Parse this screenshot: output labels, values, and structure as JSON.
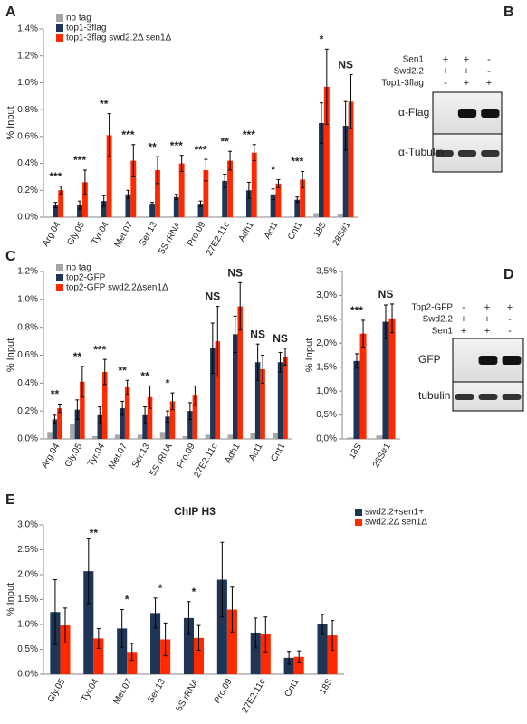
{
  "chart_data": [
    {
      "type": "bar",
      "panel": "A",
      "y_label": "% Input",
      "categories": [
        "Arg.04",
        "Gly.05",
        "Tyr.04",
        "Met.07",
        "Ser.13",
        "5S rRNA",
        "Pro.09",
        "27E2.11c",
        "Adh1",
        "Act1",
        "Cnt1",
        "18S",
        "28S#1"
      ],
      "ylim": [
        0,
        1.4
      ],
      "yticks": [
        {
          "value": 0,
          "label": "0,0%"
        },
        {
          "value": 0.2,
          "label": "0,2%"
        },
        {
          "value": 0.4,
          "label": "0,4%"
        },
        {
          "value": 0.6,
          "label": "0,6%"
        },
        {
          "value": 0.8,
          "label": "0,8%"
        },
        {
          "value": 1.0,
          "label": "1,0%"
        },
        {
          "value": 1.2,
          "label": "1,2%"
        },
        {
          "value": 1.4,
          "label": "1,4%"
        }
      ],
      "series": [
        {
          "name": "no tag",
          "color": "#a6a6a6",
          "values": [
            0.005,
            0.005,
            0.005,
            0.005,
            0.005,
            0.005,
            0.005,
            0.005,
            0.005,
            0.005,
            0.005,
            0.03,
            0.02
          ]
        },
        {
          "name": "top1-3flag",
          "color": "#1f3556",
          "values": [
            0.09,
            0.09,
            0.12,
            0.17,
            0.1,
            0.15,
            0.1,
            0.27,
            0.2,
            0.17,
            0.13,
            0.7,
            0.68
          ],
          "errors": [
            0.02,
            0.03,
            0.04,
            0.03,
            0.01,
            0.02,
            0.02,
            0.05,
            0.06,
            0.04,
            0.02,
            0.15,
            0.18
          ]
        },
        {
          "name": "top1-3flag swd2.2Δ sen1Δ",
          "color": "#ff2a00",
          "values": [
            0.2,
            0.26,
            0.61,
            0.42,
            0.35,
            0.4,
            0.35,
            0.42,
            0.48,
            0.25,
            0.28,
            0.97,
            0.86
          ],
          "errors": [
            0.03,
            0.09,
            0.16,
            0.12,
            0.1,
            0.06,
            0.08,
            0.07,
            0.06,
            0.03,
            0.06,
            0.28,
            0.2
          ]
        }
      ],
      "annotations": [
        "***",
        "***",
        "**",
        "***",
        "**",
        "***",
        "***",
        "**",
        "***",
        "*",
        "***",
        "*",
        "NS"
      ]
    },
    {
      "type": "bar",
      "panel": "C",
      "y_label": "% Input",
      "categories": [
        "Arg.04",
        "Gly.05",
        "Tyr.04",
        "Met.07",
        "Ser.13",
        "5S rRNA",
        "Pro.09",
        "27E2.11c",
        "Adh1",
        "Act1",
        "Cnt1"
      ],
      "ylim": [
        0,
        1.2
      ],
      "yticks": [
        {
          "value": 0,
          "label": "0,0%"
        },
        {
          "value": 0.2,
          "label": "0,2%"
        },
        {
          "value": 0.4,
          "label": "0,4%"
        },
        {
          "value": 0.6,
          "label": "0,6%"
        },
        {
          "value": 0.8,
          "label": "0,8%"
        },
        {
          "value": 1.0,
          "label": "1,0%"
        },
        {
          "value": 1.2,
          "label": "1,2%"
        }
      ],
      "series": [
        {
          "name": "no tag",
          "color": "#a6a6a6",
          "values": [
            0.05,
            0.11,
            0.02,
            0.03,
            0.03,
            0.05,
            0.02,
            0.03,
            0.03,
            0.04,
            0.04
          ]
        },
        {
          "name": "top2-GFP",
          "color": "#1f3556",
          "values": [
            0.14,
            0.21,
            0.17,
            0.22,
            0.17,
            0.16,
            0.2,
            0.65,
            0.75,
            0.55,
            0.55
          ],
          "errors": [
            0.03,
            0.07,
            0.06,
            0.05,
            0.06,
            0.04,
            0.06,
            0.18,
            0.13,
            0.13,
            0.07
          ]
        },
        {
          "name": "top2-GFP swd2.2Δsen1Δ",
          "color": "#ff2a00",
          "values": [
            0.22,
            0.41,
            0.48,
            0.37,
            0.3,
            0.27,
            0.31,
            0.7,
            0.95,
            0.5,
            0.59
          ],
          "errors": [
            0.03,
            0.11,
            0.09,
            0.05,
            0.08,
            0.06,
            0.07,
            0.25,
            0.17,
            0.1,
            0.06
          ]
        }
      ],
      "annotations": [
        "**",
        "**",
        "***",
        "**",
        "**",
        "*",
        null,
        "NS",
        "NS",
        "NS",
        "NS"
      ]
    },
    {
      "type": "bar",
      "y_label": "% Input",
      "categories": [
        "18S",
        "28S#1"
      ],
      "ylim": [
        0,
        3.5
      ],
      "yticks": [
        {
          "value": 0,
          "label": "0,0%"
        },
        {
          "value": 0.5,
          "label": "0,5%"
        },
        {
          "value": 1.0,
          "label": "1,0%"
        },
        {
          "value": 1.5,
          "label": "1,5%"
        },
        {
          "value": 2.0,
          "label": "2,0%"
        },
        {
          "value": 2.5,
          "label": "2,5%"
        },
        {
          "value": 3.0,
          "label": "3,0%"
        },
        {
          "value": 3.5,
          "label": "3,5%"
        }
      ],
      "series": [
        {
          "color": "#a6a6a6",
          "values": [
            0.03,
            0.07
          ]
        },
        {
          "color": "#1f3556",
          "values": [
            1.63,
            2.45
          ],
          "errors": [
            0.15,
            0.35
          ]
        },
        {
          "color": "#ff2a00",
          "values": [
            2.2,
            2.52
          ],
          "errors": [
            0.28,
            0.3
          ]
        }
      ],
      "annotations": [
        "***",
        "NS"
      ]
    },
    {
      "type": "bar",
      "panel": "E",
      "title": "ChIP H3",
      "y_label": "% Input",
      "categories": [
        "Gly.05",
        "Tyr.04",
        "Met.07",
        "Ser.13",
        "5S rRNA",
        "Pro.09",
        "27E2.11c",
        "Cnt1",
        "18S"
      ],
      "ylim": [
        0,
        3.0
      ],
      "yticks": [
        {
          "value": 0,
          "label": "0,0%"
        },
        {
          "value": 0.5,
          "label": "0,5%"
        },
        {
          "value": 1.0,
          "label": "1,0%"
        },
        {
          "value": 1.5,
          "label": "1,5%"
        },
        {
          "value": 2.0,
          "label": "2,0%"
        },
        {
          "value": 2.5,
          "label": "2,5%"
        },
        {
          "value": 3.0,
          "label": "3,0%"
        }
      ],
      "series": [
        {
          "name": "swd2.2+sen1+",
          "color": "#1f3556",
          "values": [
            1.25,
            2.07,
            0.92,
            1.23,
            1.13,
            1.9,
            0.83,
            0.33,
            1.0
          ],
          "errors": [
            0.65,
            0.65,
            0.38,
            0.3,
            0.33,
            0.75,
            0.3,
            0.13,
            0.2
          ]
        },
        {
          "name": "swd2.2Δ sen1Δ",
          "color": "#ff2a00",
          "values": [
            0.98,
            0.72,
            0.45,
            0.7,
            0.73,
            1.3,
            0.8,
            0.35,
            0.78
          ],
          "errors": [
            0.35,
            0.2,
            0.17,
            0.33,
            0.25,
            0.45,
            0.35,
            0.12,
            0.3
          ]
        }
      ],
      "annotations": [
        null,
        "**",
        "*",
        "*",
        "*",
        null,
        null,
        null,
        null
      ]
    }
  ],
  "blots": [
    {
      "panel": "B",
      "rows": [
        {
          "label": "Sen1",
          "signs": [
            "+",
            "+",
            "-"
          ]
        },
        {
          "label": "Swd2.2",
          "signs": [
            "+",
            "+",
            "-"
          ]
        },
        {
          "label": "Top1-3flag",
          "signs": [
            "-",
            "+",
            "+"
          ]
        }
      ],
      "probes": [
        "α-Flag",
        "α-Tubulin"
      ]
    },
    {
      "panel": "D",
      "rows": [
        {
          "label": "Top2-GFP",
          "signs": [
            "-",
            "+",
            "+"
          ]
        },
        {
          "label": "Swd2.2",
          "signs": [
            "+",
            "+",
            "-"
          ]
        },
        {
          "label": "Sen1",
          "signs": [
            "+",
            "+",
            "-"
          ]
        }
      ],
      "probes": [
        "GFP",
        "tubulin"
      ]
    }
  ]
}
